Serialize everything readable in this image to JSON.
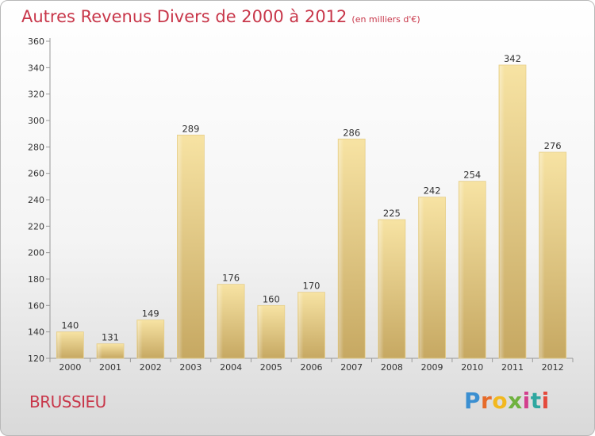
{
  "chart_data": {
    "type": "bar",
    "title": "Autres Revenus Divers de 2000 à 2012",
    "subtitle": "(en milliers d'€)",
    "categories": [
      "2000",
      "2001",
      "2002",
      "2003",
      "2004",
      "2005",
      "2006",
      "2007",
      "2008",
      "2009",
      "2010",
      "2011",
      "2012"
    ],
    "values": [
      140,
      131,
      149,
      289,
      176,
      160,
      170,
      286,
      225,
      242,
      254,
      342,
      276
    ],
    "ylim": [
      120,
      360
    ],
    "yticks": [
      120,
      140,
      160,
      180,
      200,
      220,
      240,
      260,
      280,
      300,
      320,
      340,
      360
    ],
    "grid": false,
    "legend": "none"
  },
  "place_name": "BRUSSIEU",
  "logo": {
    "letters": [
      "P",
      "r",
      "o",
      "x",
      "i",
      "t",
      "i"
    ]
  },
  "colors": {
    "title": "#c8374a",
    "bar_light": "#f5e0a0",
    "bar_dark": "#c9ab62",
    "axis": "#999999"
  }
}
